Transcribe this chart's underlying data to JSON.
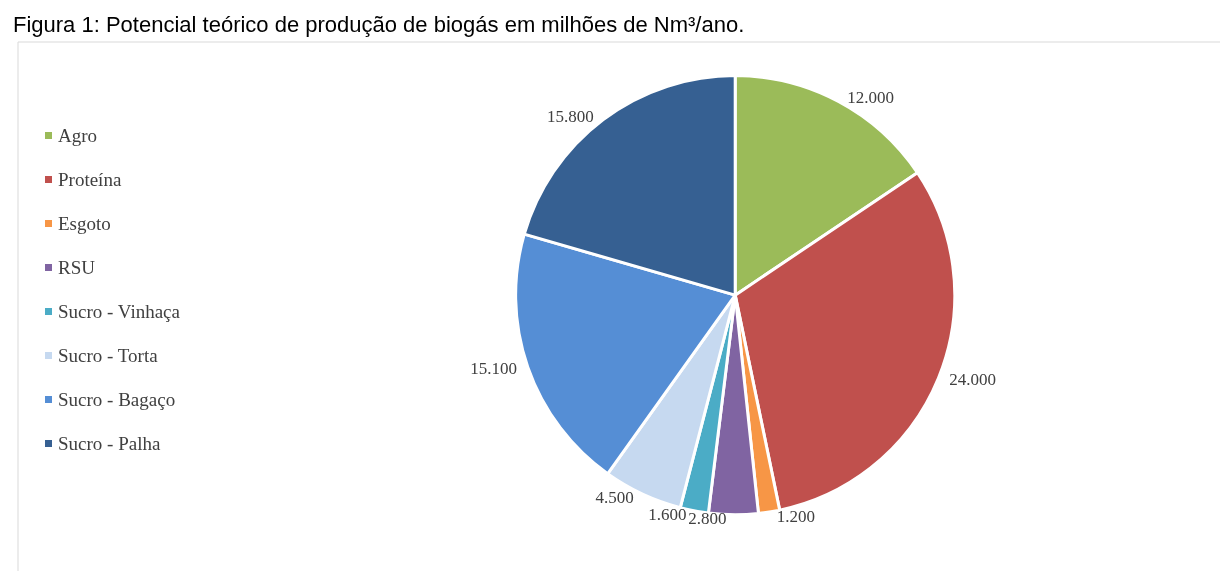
{
  "chart_data": {
    "type": "pie",
    "title": "Figura 1: Potencial teórico de produção de biogás em milhões de Nm³/ano.",
    "categories": [
      "Agro",
      "Proteína",
      "Esgoto",
      "RSU",
      "Sucro - Vinhaça",
      "Sucro - Torta",
      "Sucro - Bagaço",
      "Sucro - Palha"
    ],
    "values": [
      12000,
      24000,
      1200,
      2800,
      1600,
      4500,
      15100,
      15800
    ],
    "value_labels": [
      "12.000",
      "24.000",
      "1.200",
      "2.800",
      "1.600",
      "4.500",
      "15.100",
      "15.800"
    ],
    "colors": [
      "#9bbb59",
      "#c0504d",
      "#f79646",
      "#8064a2",
      "#4bacc6",
      "#c6d9f0",
      "#558ed5",
      "#366092"
    ],
    "legend": "left"
  }
}
